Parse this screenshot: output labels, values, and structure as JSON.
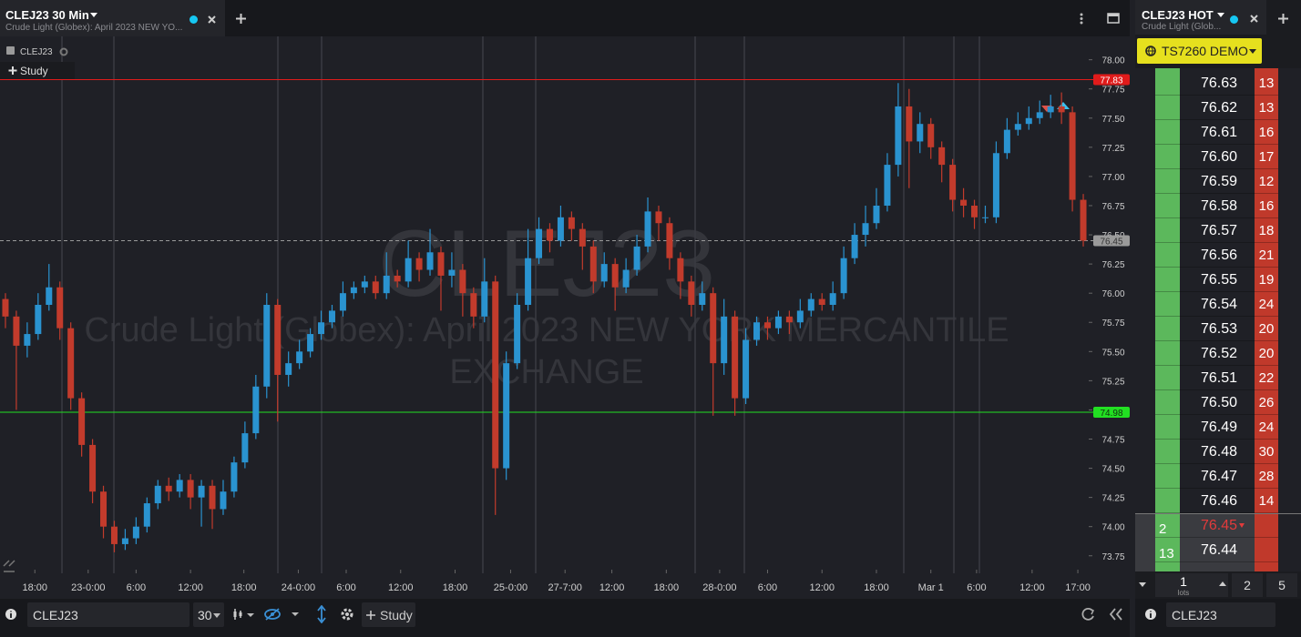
{
  "header": {
    "title": "CLEJ23 30 Min",
    "subtitle": "Crude Light (Globex): April 2023 NEW YO...",
    "legend_symbol": "CLEJ23",
    "study_button": "Study"
  },
  "chart_data": {
    "type": "candlestick",
    "watermark": "CLEJ23",
    "watermark_subtitle": "Crude Light (Globex): April 2023 NEW YORK MERCANTILE EXCHANGE",
    "up_color": "#2a93d0",
    "down_color": "#c23b2c",
    "open": [
      75.95,
      75.8,
      75.55,
      75.65,
      75.9,
      76.05,
      75.7,
      75.1,
      74.7,
      74.3,
      74.0,
      73.85,
      73.9,
      74.0,
      74.2,
      74.35,
      74.3,
      74.4,
      74.25,
      74.35,
      74.15,
      74.3,
      74.55,
      74.8,
      75.2,
      75.9,
      75.3,
      75.4,
      75.5,
      75.65,
      75.75,
      75.85,
      76.0,
      76.05,
      76.1,
      76.0,
      76.15,
      76.1,
      76.3,
      76.2,
      76.35,
      76.15,
      76.2,
      76.0,
      75.8,
      76.1,
      74.5,
      75.4,
      75.9,
      76.3,
      76.55,
      76.45,
      76.65,
      76.55,
      76.4,
      76.1,
      76.25,
      76.05,
      76.2,
      76.4,
      76.7,
      76.6,
      76.3,
      76.1,
      75.9,
      76.0,
      75.4,
      75.8,
      75.1,
      75.6,
      75.75,
      75.7,
      75.8,
      75.75,
      75.85,
      75.95,
      75.9,
      76.0,
      76.3,
      76.5,
      76.6,
      76.75,
      77.1,
      77.6,
      77.3,
      77.45,
      77.25,
      77.1,
      76.8,
      76.75,
      76.65,
      76.65,
      77.2,
      77.4,
      77.45,
      77.5,
      77.55,
      77.6,
      77.55,
      76.8
    ],
    "high": [
      76.0,
      75.85,
      75.75,
      76.0,
      76.25,
      76.1,
      75.75,
      75.15,
      74.75,
      74.35,
      74.05,
      73.98,
      74.08,
      74.25,
      74.4,
      74.42,
      74.45,
      74.45,
      74.4,
      74.4,
      74.4,
      74.6,
      74.9,
      75.3,
      76.0,
      75.95,
      75.5,
      75.6,
      75.7,
      75.85,
      75.9,
      76.1,
      76.1,
      76.15,
      76.15,
      76.35,
      76.2,
      76.45,
      76.35,
      76.55,
      76.4,
      76.35,
      76.25,
      76.05,
      76.3,
      76.15,
      75.5,
      76.0,
      76.55,
      76.65,
      76.6,
      76.75,
      76.7,
      76.6,
      76.45,
      76.35,
      76.3,
      76.3,
      76.5,
      76.82,
      76.75,
      76.65,
      76.35,
      76.15,
      76.1,
      76.05,
      75.95,
      75.85,
      75.7,
      75.8,
      75.8,
      75.85,
      75.85,
      75.95,
      76.0,
      76.0,
      76.1,
      76.4,
      76.6,
      76.75,
      76.9,
      77.2,
      77.8,
      77.75,
      77.55,
      77.5,
      77.3,
      77.15,
      76.9,
      76.8,
      76.75,
      77.3,
      77.5,
      77.55,
      77.6,
      77.65,
      77.7,
      77.72,
      77.6,
      76.85
    ],
    "low": [
      75.7,
      75.0,
      75.45,
      75.6,
      75.85,
      75.6,
      75.0,
      74.6,
      74.2,
      73.9,
      73.78,
      73.8,
      73.85,
      73.95,
      74.15,
      74.22,
      74.25,
      74.15,
      74.0,
      73.98,
      74.1,
      74.25,
      74.5,
      74.75,
      75.1,
      74.9,
      75.2,
      75.35,
      75.45,
      75.6,
      75.7,
      75.8,
      75.95,
      76.0,
      75.95,
      75.95,
      76.05,
      76.05,
      76.1,
      76.15,
      75.85,
      76.05,
      75.8,
      75.7,
      75.75,
      74.1,
      74.4,
      75.35,
      75.85,
      76.25,
      76.35,
      76.4,
      76.45,
      76.2,
      76.0,
      76.05,
      75.85,
      76.0,
      76.15,
      76.35,
      76.45,
      76.2,
      75.95,
      75.8,
      75.85,
      74.95,
      75.3,
      74.95,
      75.05,
      75.55,
      75.6,
      75.65,
      75.65,
      75.7,
      75.8,
      75.85,
      75.85,
      75.95,
      76.25,
      76.4,
      76.55,
      76.7,
      77.0,
      76.9,
      77.2,
      77.15,
      76.95,
      76.7,
      76.65,
      76.55,
      76.6,
      76.6,
      77.15,
      77.35,
      77.4,
      77.45,
      77.5,
      77.45,
      76.7,
      76.4
    ],
    "close": [
      75.8,
      75.55,
      75.65,
      75.9,
      76.05,
      75.7,
      75.1,
      74.7,
      74.3,
      74.0,
      73.85,
      73.9,
      74.0,
      74.2,
      74.35,
      74.3,
      74.4,
      74.25,
      74.35,
      74.15,
      74.3,
      74.55,
      74.8,
      75.2,
      75.9,
      75.3,
      75.4,
      75.5,
      75.65,
      75.75,
      75.85,
      76.0,
      76.05,
      76.1,
      76.0,
      76.15,
      76.1,
      76.3,
      76.2,
      76.35,
      76.15,
      76.2,
      76.0,
      75.8,
      76.1,
      74.5,
      75.4,
      75.9,
      76.3,
      76.55,
      76.45,
      76.65,
      76.55,
      76.4,
      76.1,
      76.25,
      76.05,
      76.2,
      76.4,
      76.7,
      76.6,
      76.3,
      76.1,
      75.9,
      76.0,
      75.4,
      75.8,
      75.1,
      75.6,
      75.75,
      75.7,
      75.8,
      75.75,
      75.85,
      75.95,
      75.9,
      76.0,
      76.3,
      76.5,
      76.6,
      76.75,
      77.1,
      77.6,
      77.3,
      77.45,
      77.25,
      77.1,
      76.8,
      76.75,
      76.65,
      76.65,
      77.2,
      77.4,
      77.45,
      77.5,
      77.55,
      77.6,
      77.55,
      76.8,
      76.45
    ],
    "xlim": [
      -0.5,
      99.5
    ],
    "xticks": [
      {
        "value": 2.7,
        "label": "18:00"
      },
      {
        "value": 7.6,
        "label": "23-0:00"
      },
      {
        "value": 12.0,
        "label": "6:00"
      },
      {
        "value": 17.0,
        "label": "12:00"
      },
      {
        "value": 21.9,
        "label": "18:00"
      },
      {
        "value": 26.9,
        "label": "24-0:00"
      },
      {
        "value": 31.3,
        "label": "6:00"
      },
      {
        "value": 36.3,
        "label": "12:00"
      },
      {
        "value": 41.3,
        "label": "18:00"
      },
      {
        "value": 46.4,
        "label": "25-0:00"
      },
      {
        "value": 51.4,
        "label": "27-7:00"
      },
      {
        "value": 55.7,
        "label": "12:00"
      },
      {
        "value": 60.7,
        "label": "18:00"
      },
      {
        "value": 65.6,
        "label": "28-0:00"
      },
      {
        "value": 70.0,
        "label": "6:00"
      },
      {
        "value": 75.0,
        "label": "12:00"
      },
      {
        "value": 80.0,
        "label": "18:00"
      },
      {
        "value": 85.0,
        "label": "Mar 1"
      },
      {
        "value": 89.2,
        "label": "6:00"
      },
      {
        "value": 94.3,
        "label": "12:00"
      },
      {
        "value": 98.5,
        "label": "17:00"
      }
    ],
    "ylim": [
      73.6,
      78.2
    ],
    "yticks": [
      73.75,
      {
        "value": 74,
        "label": "74.00"
      },
      74.25,
      {
        "value": 74.5,
        "label": "74.50"
      },
      74.75,
      {
        "value": 75,
        "label": "75.00"
      },
      75.25,
      {
        "value": 75.5,
        "label": "75.50"
      },
      75.75,
      {
        "value": 76,
        "label": "76.00"
      },
      76.25,
      {
        "value": 76.5,
        "label": "76.50"
      },
      76.75,
      {
        "value": 77,
        "label": "77.00"
      },
      77.25,
      {
        "value": 77.5,
        "label": "77.50"
      },
      77.75,
      {
        "value": 78,
        "label": "78.00"
      }
    ],
    "levels": [
      {
        "value": 77.83,
        "color": "#e01b1b",
        "text_color": "#ffffff",
        "dashed": false
      },
      {
        "value": 74.98,
        "color": "#22e022",
        "text_color": "#10300f",
        "dashed": false
      },
      {
        "value": 76.45,
        "color": "#9a9a9a",
        "text_color": "#333333",
        "dashed": true
      }
    ]
  },
  "toolbar": {
    "symbol": "CLEJ23",
    "interval": "30",
    "study_button": "Study"
  },
  "dom": {
    "title": "CLEJ23 HOT",
    "subtitle": "Crude Light (Glob...",
    "account": "TS7260 DEMO",
    "rows": [
      {
        "price": "76.63",
        "ask_size": 13
      },
      {
        "price": "76.62",
        "ask_size": 13
      },
      {
        "price": "76.61",
        "ask_size": 16
      },
      {
        "price": "76.60",
        "ask_size": 17
      },
      {
        "price": "76.59",
        "ask_size": 12
      },
      {
        "price": "76.58",
        "ask_size": 16
      },
      {
        "price": "76.57",
        "ask_size": 18
      },
      {
        "price": "76.56",
        "ask_size": 21
      },
      {
        "price": "76.55",
        "ask_size": 19
      },
      {
        "price": "76.54",
        "ask_size": 24
      },
      {
        "price": "76.53",
        "ask_size": 20
      },
      {
        "price": "76.52",
        "ask_size": 20
      },
      {
        "price": "76.51",
        "ask_size": 22
      },
      {
        "price": "76.50",
        "ask_size": 26
      },
      {
        "price": "76.49",
        "ask_size": 24
      },
      {
        "price": "76.48",
        "ask_size": 30
      },
      {
        "price": "76.47",
        "ask_size": 28
      },
      {
        "price": "76.46",
        "ask_size": 14
      },
      {
        "price": "76.45",
        "bid_size": 2,
        "color": "#e23b3b"
      },
      {
        "price": "76.44",
        "bid_size": 13
      }
    ],
    "quantity": 1,
    "quantity_unit": "lots",
    "presets": [
      2,
      5
    ],
    "symbol": "CLEJ23"
  }
}
